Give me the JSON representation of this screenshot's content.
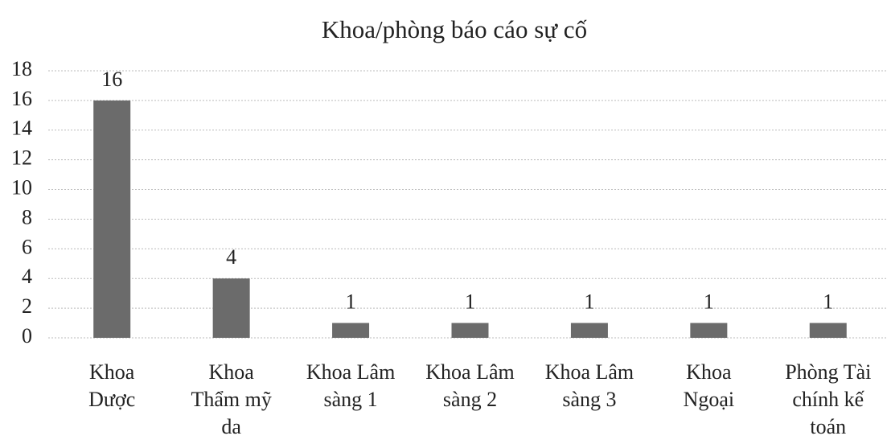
{
  "chart_data": {
    "type": "bar",
    "title": "Khoa/phòng báo cáo sự cố",
    "categories": [
      "Khoa Dược",
      "Khoa Thẩm mỹ da",
      "Khoa Lâm sàng 1",
      "Khoa Lâm sàng 2",
      "Khoa Lâm sàng 3",
      "Khoa Ngoại",
      "Phòng Tài chính kế toán"
    ],
    "values": [
      16,
      4,
      1,
      1,
      1,
      1,
      1
    ],
    "color": "#6b6b6b",
    "ylim": [
      0,
      18
    ],
    "yticks": [
      0,
      2,
      4,
      6,
      8,
      10,
      12,
      14,
      16,
      18
    ],
    "grid": true
  }
}
